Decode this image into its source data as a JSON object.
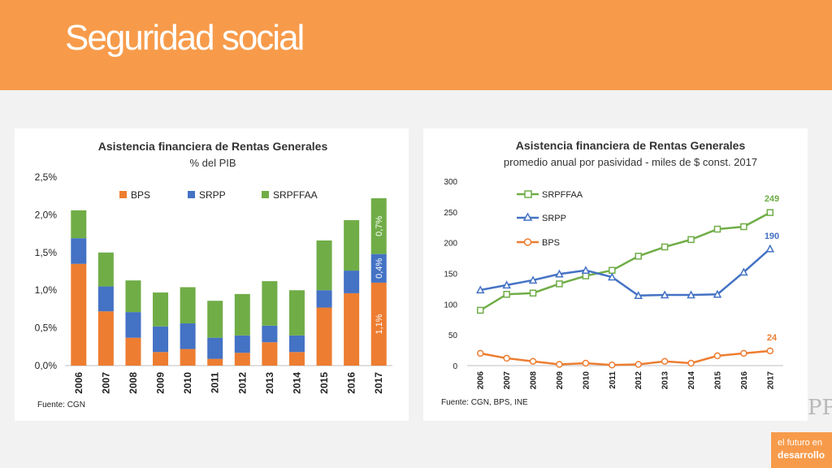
{
  "header": {
    "title": "Seguridad social"
  },
  "colors": {
    "header": "#f79b4b",
    "bps": "#ed7d31",
    "srpp": "#4472c4",
    "srpffaa": "#70ad47"
  },
  "chart_data": [
    {
      "type": "bar",
      "stacked": true,
      "title": "Asistencia financiera de Rentas Generales",
      "subtitle": "% del PIB",
      "categories": [
        "2006",
        "2007",
        "2008",
        "2009",
        "2010",
        "2011",
        "2012",
        "2013",
        "2014",
        "2015",
        "2016",
        "2017"
      ],
      "series": [
        {
          "name": "BPS",
          "values": [
            1.35,
            0.72,
            0.37,
            0.18,
            0.22,
            0.09,
            0.17,
            0.31,
            0.18,
            0.77,
            0.96,
            1.1
          ]
        },
        {
          "name": "SRPP",
          "values": [
            0.34,
            0.33,
            0.34,
            0.34,
            0.34,
            0.28,
            0.23,
            0.22,
            0.22,
            0.23,
            0.3,
            0.38
          ]
        },
        {
          "name": "SRPFFAA",
          "values": [
            0.37,
            0.45,
            0.42,
            0.45,
            0.48,
            0.49,
            0.55,
            0.59,
            0.6,
            0.66,
            0.67,
            0.74
          ]
        }
      ],
      "data_labels": {
        "bps_2017": "1,1%",
        "srpp_2017": "0,4%",
        "srpffaa_2017": "0,7%"
      },
      "y_ticks": [
        "0,0%",
        "0,5%",
        "1,0%",
        "1,5%",
        "2,0%",
        "2,5%"
      ],
      "ylim": [
        0,
        2.5
      ],
      "legend": "top",
      "grid": false,
      "source": "Fuente: CGN"
    },
    {
      "type": "line",
      "title": "Asistencia financiera de Rentas Generales",
      "subtitle": "promedio anual por pasividad - miles de $ const. 2017",
      "x": [
        "2006",
        "2007",
        "2008",
        "2009",
        "2010",
        "2011",
        "2012",
        "2013",
        "2014",
        "2015",
        "2016",
        "2017"
      ],
      "series": [
        {
          "name": "SRPFFAA",
          "values": [
            90,
            116,
            118,
            133,
            146,
            155,
            178,
            193,
            205,
            222,
            226,
            249
          ]
        },
        {
          "name": "SRPP",
          "values": [
            123,
            131,
            139,
            149,
            155,
            144,
            114,
            115,
            115,
            116,
            152,
            190
          ]
        },
        {
          "name": "BPS",
          "values": [
            20,
            12,
            7,
            2,
            4,
            1,
            2,
            7,
            4,
            16,
            20,
            24
          ]
        }
      ],
      "end_labels": {
        "srpffaa": "249",
        "srpp": "190",
        "bps": "24"
      },
      "y_ticks": [
        "0",
        "50",
        "100",
        "150",
        "200",
        "250",
        "300"
      ],
      "ylim": [
        0,
        300
      ],
      "legend": "top-left",
      "grid": false,
      "source": "Fuente: CGN, BPS, INE"
    }
  ],
  "logo": {
    "text": "PP"
  },
  "brand": {
    "line1": "el futuro en",
    "line2": "desarrollo"
  }
}
